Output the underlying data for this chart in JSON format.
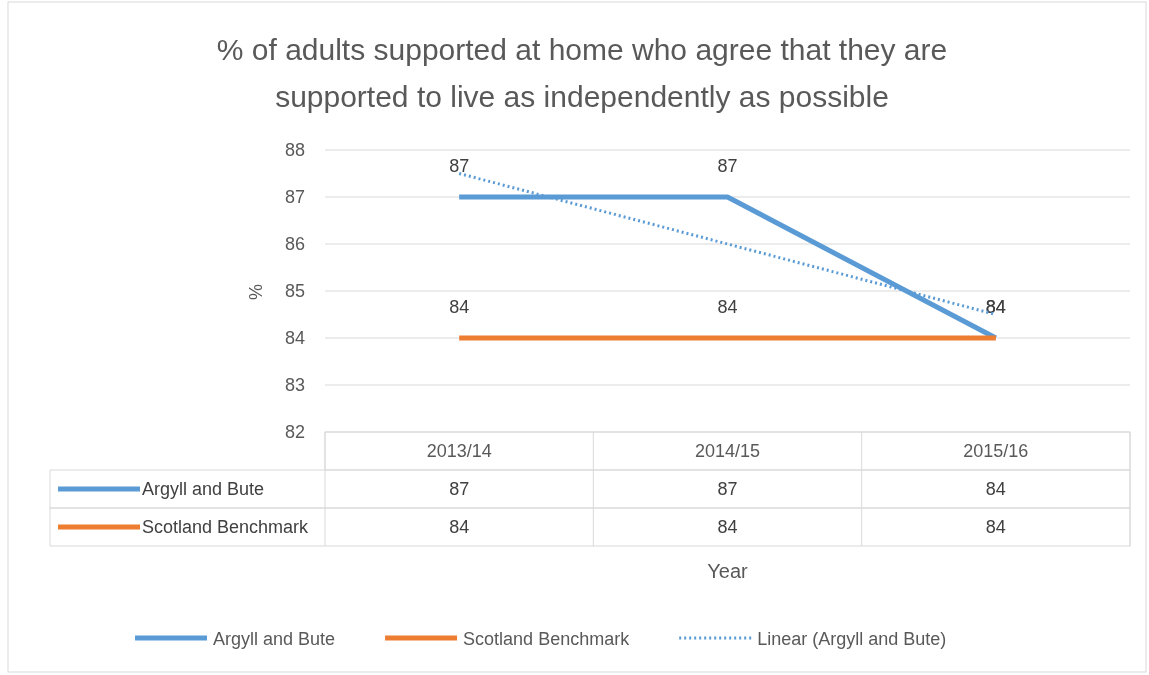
{
  "chart_data": {
    "type": "line",
    "title": "% of adults supported at home who agree that they are supported to live as independently as possible",
    "xlabel": "Year",
    "ylabel": "%",
    "categories": [
      "2013/14",
      "2014/15",
      "2015/16"
    ],
    "series": [
      {
        "name": "Argyll and Bute",
        "color": "#5b9bd5",
        "values": [
          87,
          87,
          84
        ],
        "value_labels": [
          "87",
          "87",
          "84"
        ],
        "line_style": "solid"
      },
      {
        "name": "Scotland Benchmark",
        "color": "#ed7d31",
        "values": [
          84,
          84,
          84
        ],
        "value_labels": [
          "84",
          "84",
          "84"
        ],
        "line_style": "solid"
      },
      {
        "name": "Linear (Argyll and Bute)",
        "type": "line",
        "color": "#5b9bd5",
        "values": [
          87.5,
          86,
          84.5
        ],
        "line_style": "dotted"
      }
    ],
    "ylim": [
      82,
      88
    ],
    "yticks": [
      82,
      83,
      84,
      85,
      86,
      87,
      88
    ],
    "grid": "y",
    "legend": "bottom",
    "marker": "none"
  }
}
